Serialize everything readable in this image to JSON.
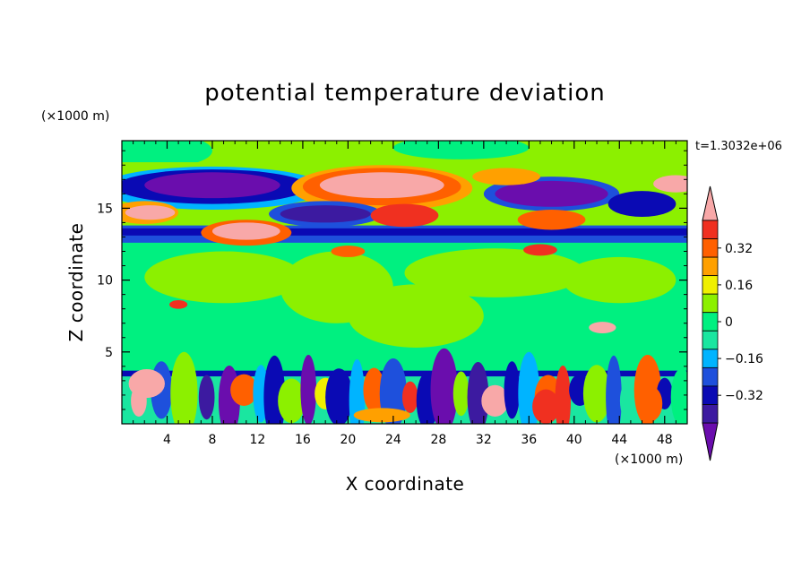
{
  "chart_data": {
    "type": "heatmap",
    "title": "potential temperature deviation",
    "xlabel": "X coordinate",
    "ylabel": "Z coordinate",
    "x_unit": "(×1000 m)",
    "y_unit": "(×1000 m)",
    "time_label": "t=1.3032e+06",
    "xlim": [
      0,
      50
    ],
    "ylim": [
      0,
      19.7
    ],
    "x_ticks": [
      4,
      8,
      12,
      16,
      20,
      24,
      28,
      32,
      36,
      40,
      44,
      48
    ],
    "x_tick_labels": [
      "4",
      "8",
      "12",
      "16",
      "20",
      "24",
      "28",
      "32",
      "36",
      "40",
      "44",
      "48"
    ],
    "y_ticks": [
      5,
      10,
      15
    ],
    "y_tick_labels": [
      "5",
      "10",
      "15"
    ],
    "grid": false,
    "colorbar": {
      "levels": [
        -0.48,
        -0.4,
        -0.32,
        -0.24,
        -0.16,
        -0.08,
        0,
        0.08,
        0.16,
        0.24,
        0.32,
        0.4
      ],
      "colors": [
        "#6a0dad",
        "#3c1aa0",
        "#0a0ab4",
        "#1e50dc",
        "#00b4ff",
        "#1ae6a0",
        "#00f080",
        "#8cf000",
        "#f0f000",
        "#ffa000",
        "#ff6000",
        "#f03020",
        "#f8a8a8"
      ],
      "labels": [
        {
          "level": 0.32,
          "text": "0.32"
        },
        {
          "level": 0.16,
          "text": "0.16"
        },
        {
          "level": 0,
          "text": "0"
        },
        {
          "level": -0.16,
          "text": "−0.16"
        },
        {
          "level": -0.32,
          "text": "−0.32"
        }
      ],
      "extend": "both"
    },
    "field": {
      "background": "#00f080",
      "layers": [
        {
          "band": [
            0,
            3.5
          ],
          "pattern": "turbulent boundary layer, mixed strong positive and negative"
        },
        {
          "band": [
            4,
            12
          ],
          "pattern": "weak positive patches",
          "value": 0.02
        },
        {
          "band": [
            12.5,
            14
          ],
          "pattern": "strong negative layer",
          "value": -0.3
        },
        {
          "band": [
            14,
            18
          ],
          "pattern": "alternating strong positive and negative lenses"
        }
      ]
    }
  }
}
